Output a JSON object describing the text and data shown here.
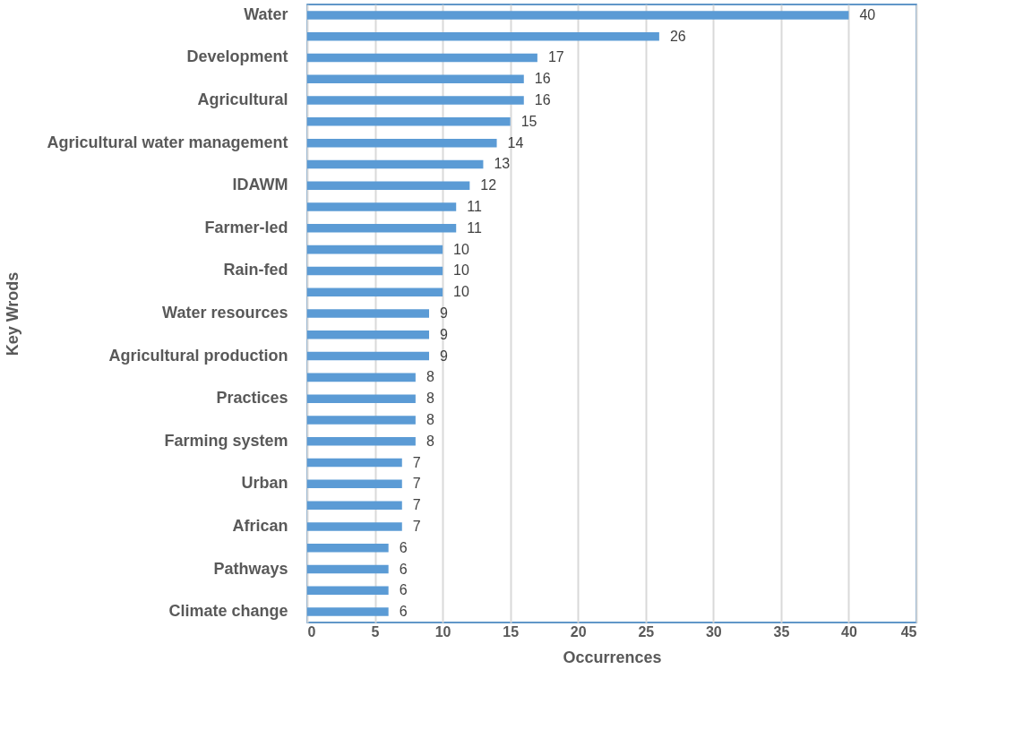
{
  "chart_data": {
    "type": "bar",
    "orientation": "horizontal",
    "xlabel": "Occurrences",
    "ylabel": "Key Wrods",
    "categories": [
      "Water",
      null,
      "Development",
      null,
      "Agricultural",
      null,
      "Agricultural water management",
      null,
      "IDAWM",
      null,
      "Farmer-led",
      null,
      "Rain-fed",
      null,
      "Water resources",
      null,
      "Agricultural production",
      null,
      "Practices",
      null,
      "Farming system",
      null,
      "Urban",
      null,
      "African",
      null,
      "Pathways",
      null,
      "Climate change"
    ],
    "values": [
      40,
      26,
      17,
      16,
      16,
      15,
      14,
      13,
      12,
      11,
      11,
      10,
      10,
      10,
      9,
      9,
      9,
      8,
      8,
      8,
      8,
      7,
      7,
      7,
      7,
      6,
      6,
      6,
      6
    ],
    "color": "#5b9bd5",
    "xlim": [
      0,
      45
    ],
    "xticks": [
      0,
      5,
      10,
      15,
      20,
      25,
      30,
      35,
      40,
      45
    ],
    "grid": "x",
    "data_labels": true
  }
}
